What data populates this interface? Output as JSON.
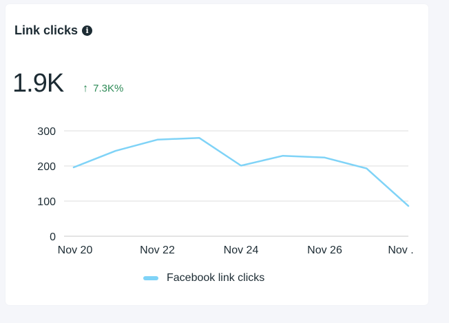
{
  "card": {
    "title": "Link clicks",
    "info_icon": "info-icon",
    "metric_value": "1.9K",
    "metric_change": "7.3K%",
    "change_direction_icon": "arrow-up-icon"
  },
  "colors": {
    "line": "#7fd3f7",
    "positive": "#2e8b57",
    "text": "#1c2b33",
    "grid": "#dddddd"
  },
  "chart_data": {
    "type": "line",
    "title": "Link clicks",
    "x": [
      0,
      1,
      2,
      3,
      4,
      5,
      6,
      7,
      8
    ],
    "x_tick_positions": [
      0,
      2,
      4,
      6,
      8
    ],
    "x_tick_labels": [
      "Nov 20",
      "Nov 22",
      "Nov 24",
      "Nov 26",
      "Nov ."
    ],
    "y_ticks": [
      0,
      100,
      200,
      300
    ],
    "ylim": [
      0,
      300
    ],
    "series": [
      {
        "name": "Facebook link clicks",
        "values": [
          196,
          243,
          275,
          280,
          201,
          229,
          224,
          193,
          86
        ]
      }
    ],
    "legend": "bottom-center"
  }
}
